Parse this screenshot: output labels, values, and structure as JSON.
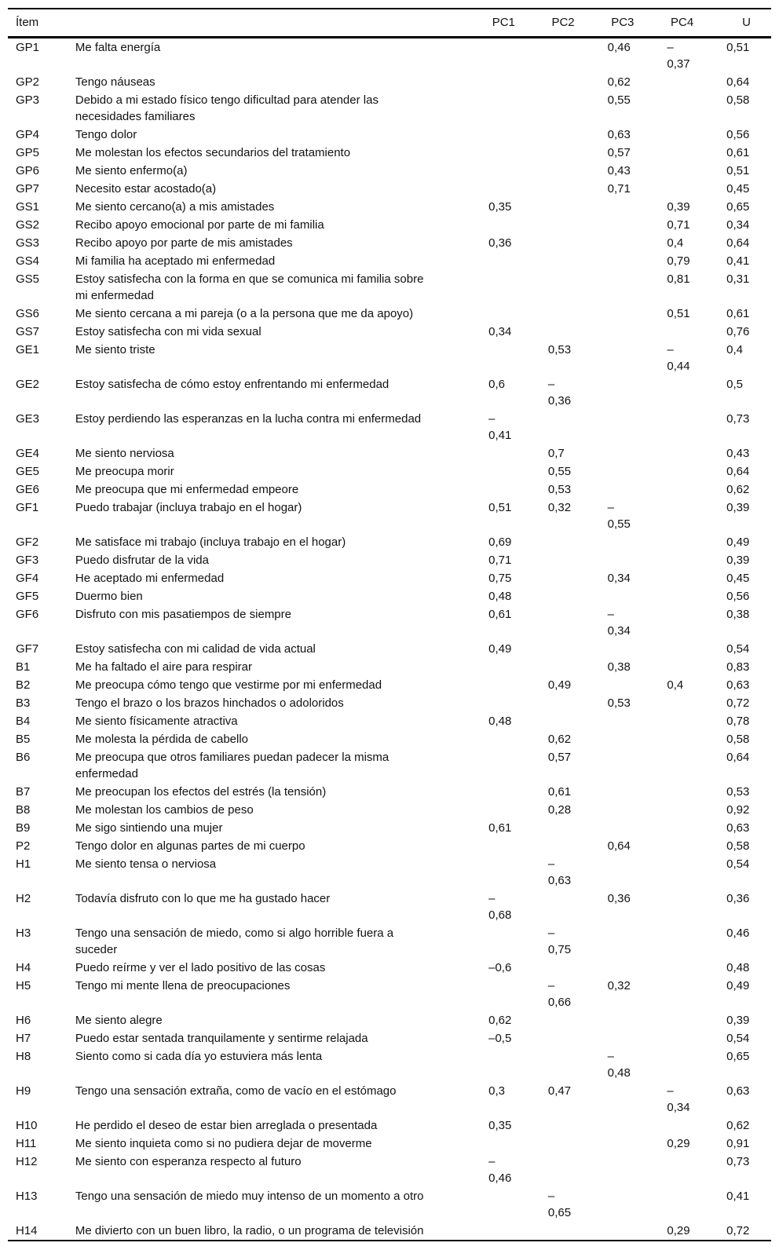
{
  "table": {
    "headers": {
      "item": "Ítem",
      "desc": "",
      "pc1": "PC1",
      "pc2": "PC2",
      "pc3": "PC3",
      "pc4": "PC4",
      "u": "U"
    },
    "rows": [
      {
        "code": "GP1",
        "desc": "Me falta energía",
        "pc1": "",
        "pc2": "",
        "pc3": "0,46",
        "pc4": "–\n0,37",
        "u": "0,51"
      },
      {
        "code": "GP2",
        "desc": "Tengo náuseas",
        "pc1": "",
        "pc2": "",
        "pc3": "0,62",
        "pc4": "",
        "u": "0,64"
      },
      {
        "code": "GP3",
        "desc": "Debido a mi estado físico tengo dificultad para atender las\nnecesidades familiares",
        "pc1": "",
        "pc2": "",
        "pc3": "0,55",
        "pc4": "",
        "u": "0,58"
      },
      {
        "code": "GP4",
        "desc": "Tengo dolor",
        "pc1": "",
        "pc2": "",
        "pc3": "0,63",
        "pc4": "",
        "u": "0,56"
      },
      {
        "code": "GP5",
        "desc": "Me molestan los efectos secundarios del tratamiento",
        "pc1": "",
        "pc2": "",
        "pc3": "0,57",
        "pc4": "",
        "u": "0,61"
      },
      {
        "code": "GP6",
        "desc": "Me siento enfermo(a)",
        "pc1": "",
        "pc2": "",
        "pc3": "0,43",
        "pc4": "",
        "u": "0,51"
      },
      {
        "code": "GP7",
        "desc": "Necesito estar acostado(a)",
        "pc1": "",
        "pc2": "",
        "pc3": "0,71",
        "pc4": "",
        "u": "0,45"
      },
      {
        "code": "GS1",
        "desc": "Me siento cercano(a) a mis amistades",
        "pc1": "0,35",
        "pc2": "",
        "pc3": "",
        "pc4": "0,39",
        "u": "0,65"
      },
      {
        "code": "GS2",
        "desc": "Recibo apoyo emocional por parte de mi familia",
        "pc1": "",
        "pc2": "",
        "pc3": "",
        "pc4": "0,71",
        "u": "0,34"
      },
      {
        "code": "GS3",
        "desc": "Recibo apoyo por parte de mis amistades",
        "pc1": "0,36",
        "pc2": "",
        "pc3": "",
        "pc4": "0,4",
        "u": "0,64"
      },
      {
        "code": "GS4",
        "desc": "Mi familia ha aceptado mi enfermedad",
        "pc1": "",
        "pc2": "",
        "pc3": "",
        "pc4": "0,79",
        "u": "0,41"
      },
      {
        "code": "GS5",
        "desc": "Estoy satisfecha con la forma en que se comunica mi familia sobre\nmi enfermedad",
        "pc1": "",
        "pc2": "",
        "pc3": "",
        "pc4": "0,81",
        "u": "0,31"
      },
      {
        "code": "GS6",
        "desc": "Me siento cercana a mi pareja (o a la persona que me da apoyo)",
        "pc1": "",
        "pc2": "",
        "pc3": "",
        "pc4": "0,51",
        "u": "0,61"
      },
      {
        "code": "GS7",
        "desc": "Estoy satisfecha con mi vida sexual",
        "pc1": "0,34",
        "pc2": "",
        "pc3": "",
        "pc4": "",
        "u": "0,76"
      },
      {
        "code": "GE1",
        "desc": "Me siento triste",
        "pc1": "",
        "pc2": "0,53",
        "pc3": "",
        "pc4": "–\n0,44",
        "u": "0,4"
      },
      {
        "code": "GE2",
        "desc": "Estoy satisfecha de cómo estoy enfrentando mi enfermedad",
        "pc1": "0,6",
        "pc2": "–\n0,36",
        "pc3": "",
        "pc4": "",
        "u": "0,5"
      },
      {
        "code": "GE3",
        "desc": "Estoy perdiendo las esperanzas en la lucha contra mi enfermedad",
        "pc1": "–\n0,41",
        "pc2": "",
        "pc3": "",
        "pc4": "",
        "u": "0,73"
      },
      {
        "code": "GE4",
        "desc": "Me siento nerviosa",
        "pc1": "",
        "pc2": "0,7",
        "pc3": "",
        "pc4": "",
        "u": "0,43"
      },
      {
        "code": "GE5",
        "desc": "Me preocupa morir",
        "pc1": "",
        "pc2": "0,55",
        "pc3": "",
        "pc4": "",
        "u": "0,64"
      },
      {
        "code": "GE6",
        "desc": "Me preocupa que mi enfermedad empeore",
        "pc1": "",
        "pc2": "0,53",
        "pc3": "",
        "pc4": "",
        "u": "0,62"
      },
      {
        "code": "GF1",
        "desc": "Puedo trabajar (incluya trabajo en el hogar)",
        "pc1": "0,51",
        "pc2": "0,32",
        "pc3": "–\n0,55",
        "pc4": "",
        "u": "0,39"
      },
      {
        "code": "GF2",
        "desc": "Me satisface mi trabajo (incluya trabajo en el hogar)",
        "pc1": "0,69",
        "pc2": "",
        "pc3": "",
        "pc4": "",
        "u": "0,49"
      },
      {
        "code": "GF3",
        "desc": "Puedo disfrutar de la vida",
        "pc1": "0,71",
        "pc2": "",
        "pc3": "",
        "pc4": "",
        "u": "0,39"
      },
      {
        "code": "GF4",
        "desc": "He aceptado mi enfermedad",
        "pc1": "0,75",
        "pc2": "",
        "pc3": "0,34",
        "pc4": "",
        "u": "0,45"
      },
      {
        "code": "GF5",
        "desc": "Duermo bien",
        "pc1": "0,48",
        "pc2": "",
        "pc3": "",
        "pc4": "",
        "u": "0,56"
      },
      {
        "code": "GF6",
        "desc": "Disfruto con mis pasatiempos de siempre",
        "pc1": "0,61",
        "pc2": "",
        "pc3": "–\n0,34",
        "pc4": "",
        "u": "0,38"
      },
      {
        "code": "GF7",
        "desc": "Estoy satisfecha con mi calidad de vida actual",
        "pc1": "0,49",
        "pc2": "",
        "pc3": "",
        "pc4": "",
        "u": "0,54"
      },
      {
        "code": "B1",
        "desc": "Me ha faltado el aire para respirar",
        "pc1": "",
        "pc2": "",
        "pc3": "0,38",
        "pc4": "",
        "u": "0,83"
      },
      {
        "code": "B2",
        "desc": "Me preocupa cómo tengo que vestirme por mi enfermedad",
        "pc1": "",
        "pc2": "0,49",
        "pc3": "",
        "pc4": "0,4",
        "u": "0,63"
      },
      {
        "code": "B3",
        "desc": "Tengo el brazo o los brazos hinchados o adoloridos",
        "pc1": "",
        "pc2": "",
        "pc3": "0,53",
        "pc4": "",
        "u": "0,72"
      },
      {
        "code": "B4",
        "desc": "Me siento físicamente atractiva",
        "pc1": "0,48",
        "pc2": "",
        "pc3": "",
        "pc4": "",
        "u": "0,78"
      },
      {
        "code": "B5",
        "desc": "Me molesta la pérdida de cabello",
        "pc1": "",
        "pc2": "0,62",
        "pc3": "",
        "pc4": "",
        "u": "0,58"
      },
      {
        "code": "B6",
        "desc": "Me preocupa que otros familiares puedan padecer la misma\nenfermedad",
        "pc1": "",
        "pc2": "0,57",
        "pc3": "",
        "pc4": "",
        "u": "0,64"
      },
      {
        "code": "B7",
        "desc": "Me preocupan los efectos del estrés (la tensión)",
        "pc1": "",
        "pc2": "0,61",
        "pc3": "",
        "pc4": "",
        "u": "0,53"
      },
      {
        "code": "B8",
        "desc": "Me molestan los cambios de peso",
        "pc1": "",
        "pc2": "0,28",
        "pc3": "",
        "pc4": "",
        "u": "0,92"
      },
      {
        "code": "B9",
        "desc": "Me sigo sintiendo una mujer",
        "pc1": "0,61",
        "pc2": "",
        "pc3": "",
        "pc4": "",
        "u": "0,63"
      },
      {
        "code": "P2",
        "desc": "Tengo dolor en algunas partes de mi cuerpo",
        "pc1": "",
        "pc2": "",
        "pc3": "0,64",
        "pc4": "",
        "u": "0,58"
      },
      {
        "code": "H1",
        "desc": "Me siento tensa o nerviosa",
        "pc1": "",
        "pc2": "–\n0,63",
        "pc3": "",
        "pc4": "",
        "u": "0,54"
      },
      {
        "code": "H2",
        "desc": "Todavía disfruto con lo que me ha gustado hacer",
        "pc1": "–\n0,68",
        "pc2": "",
        "pc3": "0,36",
        "pc4": "",
        "u": "0,36"
      },
      {
        "code": "H3",
        "desc": "Tengo una sensación de miedo, como si algo horrible fuera a\nsuceder",
        "pc1": "",
        "pc2": "–\n0,75",
        "pc3": "",
        "pc4": "",
        "u": "0,46"
      },
      {
        "code": "H4",
        "desc": "Puedo reírme y ver el lado positivo de las cosas",
        "pc1": "–0,6",
        "pc2": "",
        "pc3": "",
        "pc4": "",
        "u": "0,48"
      },
      {
        "code": "H5",
        "desc": "Tengo mi mente llena de preocupaciones",
        "pc1": "",
        "pc2": "–\n0,66",
        "pc3": "0,32",
        "pc4": "",
        "u": "0,49"
      },
      {
        "code": "H6",
        "desc": "Me siento alegre",
        "pc1": "0,62",
        "pc2": "",
        "pc3": "",
        "pc4": "",
        "u": "0,39"
      },
      {
        "code": "H7",
        "desc": "Puedo estar sentada tranquilamente y sentirme relajada",
        "pc1": "–0,5",
        "pc2": "",
        "pc3": "",
        "pc4": "",
        "u": "0,54"
      },
      {
        "code": "H8",
        "desc": "Siento como si cada día yo estuviera más lenta",
        "pc1": "",
        "pc2": "",
        "pc3": "–\n0,48",
        "pc4": "",
        "u": "0,65"
      },
      {
        "code": "H9",
        "desc": "Tengo una sensación extraña, como de vacío en el estómago",
        "pc1": "0,3",
        "pc2": "0,47",
        "pc3": "",
        "pc4": "–\n0,34",
        "u": "0,63"
      },
      {
        "code": "H10",
        "desc": "He perdido el deseo de estar bien arreglada o presentada",
        "pc1": "0,35",
        "pc2": "",
        "pc3": "",
        "pc4": "",
        "u": "0,62"
      },
      {
        "code": "H11",
        "desc": "Me siento inquieta como si no pudiera dejar de moverme",
        "pc1": "",
        "pc2": "",
        "pc3": "",
        "pc4": "0,29",
        "u": "0,91"
      },
      {
        "code": "H12",
        "desc": "Me siento con esperanza respecto al futuro",
        "pc1": "–\n0,46",
        "pc2": "",
        "pc3": "",
        "pc4": "",
        "u": "0,73"
      },
      {
        "code": "H13",
        "desc": "Tengo una sensación de miedo muy intenso de un momento a otro",
        "pc1": "",
        "pc2": "–\n0,65",
        "pc3": "",
        "pc4": "",
        "u": "0,41"
      },
      {
        "code": "H14",
        "desc": "Me divierto con un buen libro, la radio, o un programa de televisión",
        "pc1": "",
        "pc2": "",
        "pc3": "",
        "pc4": "0,29",
        "u": "0,72"
      }
    ]
  }
}
